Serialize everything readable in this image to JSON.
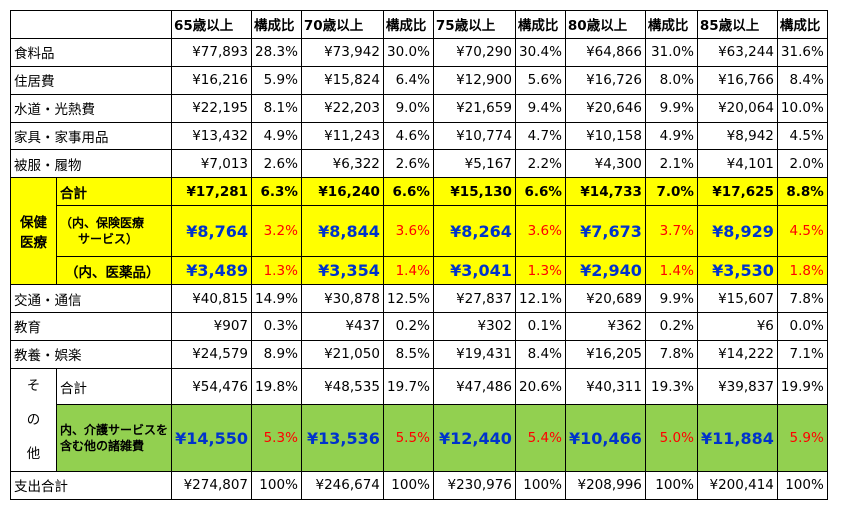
{
  "header": [
    "",
    "65歳以上",
    "構成比",
    "70歳以上",
    "構成比",
    "75歳以上",
    "構成比",
    "80歳以上",
    "構成比",
    "85歳以上",
    "構成比"
  ],
  "rows_top": [
    {
      "label": "食料品",
      "v": [
        "¥77,893",
        "28.3%",
        "¥73,942",
        "30.0%",
        "¥70,290",
        "30.4%",
        "¥64,866",
        "31.0%",
        "¥63,244",
        "31.6%"
      ]
    },
    {
      "label": "住居費",
      "v": [
        "¥16,216",
        "5.9%",
        "¥15,824",
        "6.4%",
        "¥12,900",
        "5.6%",
        "¥16,726",
        "8.0%",
        "¥16,766",
        "8.4%"
      ]
    },
    {
      "label": "水道・光熱費",
      "v": [
        "¥22,195",
        "8.1%",
        "¥22,203",
        "9.0%",
        "¥21,659",
        "9.4%",
        "¥20,646",
        "9.9%",
        "¥20,064",
        "10.0%"
      ]
    },
    {
      "label": "家具・家事用品",
      "v": [
        "¥13,432",
        "4.9%",
        "¥11,243",
        "4.6%",
        "¥10,774",
        "4.7%",
        "¥10,158",
        "4.9%",
        "¥8,942",
        "4.5%"
      ]
    },
    {
      "label": "被服・履物",
      "v": [
        "¥7,013",
        "2.6%",
        "¥6,322",
        "2.6%",
        "¥5,167",
        "2.2%",
        "¥4,300",
        "2.1%",
        "¥4,101",
        "2.0%"
      ]
    }
  ],
  "health": {
    "group_label": "保健医療",
    "group_label_1": "保健",
    "group_label_2": "医療",
    "total": {
      "label": "合計",
      "v": [
        "¥17,281",
        "6.3%",
        "¥16,240",
        "6.6%",
        "¥15,130",
        "6.6%",
        "¥14,733",
        "7.0%",
        "¥17,625",
        "8.8%"
      ]
    },
    "insured": {
      "label_1": "（内、保険医療",
      "label_2": "サービス）",
      "v": [
        "¥8,764",
        "3.2%",
        "¥8,844",
        "3.6%",
        "¥8,264",
        "3.6%",
        "¥7,673",
        "3.7%",
        "¥8,929",
        "4.5%"
      ]
    },
    "drugs": {
      "label": "（内、医薬品）",
      "v": [
        "¥3,489",
        "1.3%",
        "¥3,354",
        "1.4%",
        "¥3,041",
        "1.3%",
        "¥2,940",
        "1.4%",
        "¥3,530",
        "1.8%"
      ]
    }
  },
  "rows_mid": [
    {
      "label": "交通・通信",
      "v": [
        "¥40,815",
        "14.9%",
        "¥30,878",
        "12.5%",
        "¥27,837",
        "12.1%",
        "¥20,689",
        "9.9%",
        "¥15,607",
        "7.8%"
      ]
    },
    {
      "label": "教育",
      "v": [
        "¥907",
        "0.3%",
        "¥437",
        "0.2%",
        "¥302",
        "0.1%",
        "¥362",
        "0.2%",
        "¥6",
        "0.0%"
      ]
    },
    {
      "label": "教養・娯楽",
      "v": [
        "¥24,579",
        "8.9%",
        "¥21,050",
        "8.5%",
        "¥19,431",
        "8.4%",
        "¥16,205",
        "7.8%",
        "¥14,222",
        "7.1%"
      ]
    }
  ],
  "other": {
    "group_chars": [
      "そ",
      "の",
      "他"
    ],
    "total": {
      "label": "合計",
      "v": [
        "¥54,476",
        "19.8%",
        "¥48,535",
        "19.7%",
        "¥47,486",
        "20.6%",
        "¥40,311",
        "19.3%",
        "¥39,837",
        "19.9%"
      ]
    },
    "care": {
      "label_1": "内、介護サービスを",
      "label_2": "含む他の諸雑費",
      "v": [
        "¥14,550",
        "5.3%",
        "¥13,536",
        "5.5%",
        "¥12,440",
        "5.4%",
        "¥10,466",
        "5.0%",
        "¥11,884",
        "5.9%"
      ]
    }
  },
  "total_row": {
    "label": "支出合計",
    "v": [
      "¥274,807",
      "100%",
      "¥246,674",
      "100%",
      "¥230,976",
      "100%",
      "¥208,996",
      "100%",
      "¥200,414",
      "100%"
    ]
  },
  "colors": {
    "yellow": "#ffff00",
    "green": "#92d050",
    "blue": "#0033cc",
    "red": "#ff0000"
  }
}
